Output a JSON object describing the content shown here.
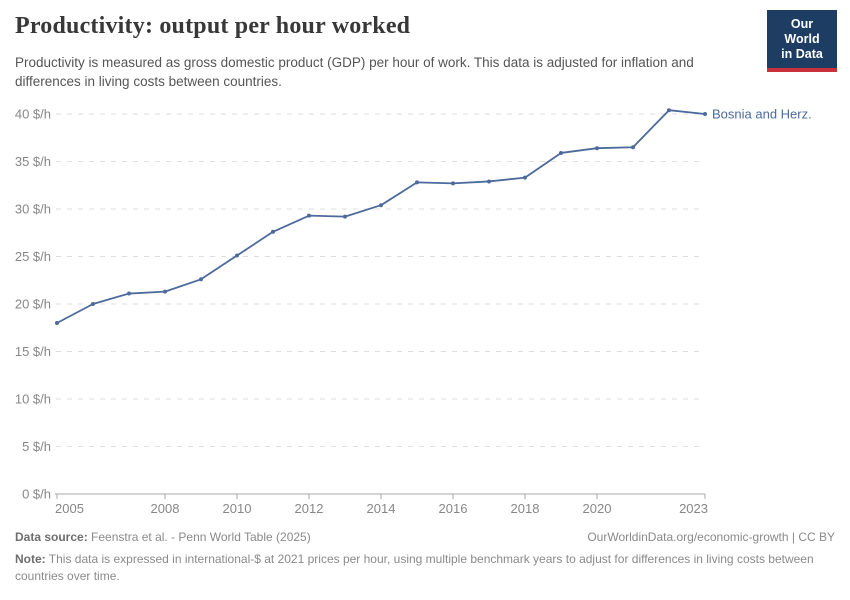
{
  "header": {
    "title": "Productivity: output per hour worked",
    "subtitle": "Productivity is measured as gross domestic product (GDP) per hour of work. This data is adjusted for inflation and differences in living costs between countries.",
    "logo": {
      "line1": "Our World",
      "line2": "in Data",
      "bg_color": "#1d3d63",
      "bar_color": "#c8303a"
    }
  },
  "chart_data": {
    "type": "line",
    "title": "Productivity: output per hour worked",
    "series": [
      {
        "name": "Bosnia and Herz.",
        "x": [
          2005,
          2006,
          2007,
          2008,
          2009,
          2010,
          2011,
          2012,
          2013,
          2014,
          2015,
          2016,
          2017,
          2018,
          2019,
          2020,
          2021,
          2022,
          2023
        ],
        "values": [
          18.0,
          20.0,
          21.1,
          21.3,
          22.6,
          25.1,
          27.6,
          29.3,
          29.2,
          30.4,
          32.8,
          32.7,
          32.9,
          33.3,
          35.9,
          36.4,
          36.5,
          40.4,
          40.0
        ]
      }
    ],
    "xlabel": "",
    "ylabel": "",
    "xlim": [
      2005,
      2023
    ],
    "ylim": [
      0,
      40
    ],
    "x_ticks": [
      2005,
      2008,
      2010,
      2012,
      2014,
      2016,
      2018,
      2020,
      2023
    ],
    "y_ticks": [
      0,
      5,
      10,
      15,
      20,
      25,
      30,
      35,
      40
    ],
    "y_tick_suffix": " $/h",
    "grid": "horizontal-dashed",
    "legend_position": "end-of-line-label",
    "line_color": "#4c6a9c",
    "axis_color": "#a8a8a8",
    "grid_color": "#dedede",
    "tick_label_color": "#878787"
  },
  "footer": {
    "source_label": "Data source:",
    "source_text": " Feenstra et al. - Penn World Table (2025)",
    "link_text": "OurWorldinData.org/economic-growth | CC BY",
    "note_label": "Note:",
    "note_text": " This data is expressed in international-$ at 2021 prices per hour, using multiple benchmark years to adjust for differences in living costs between countries over time."
  }
}
